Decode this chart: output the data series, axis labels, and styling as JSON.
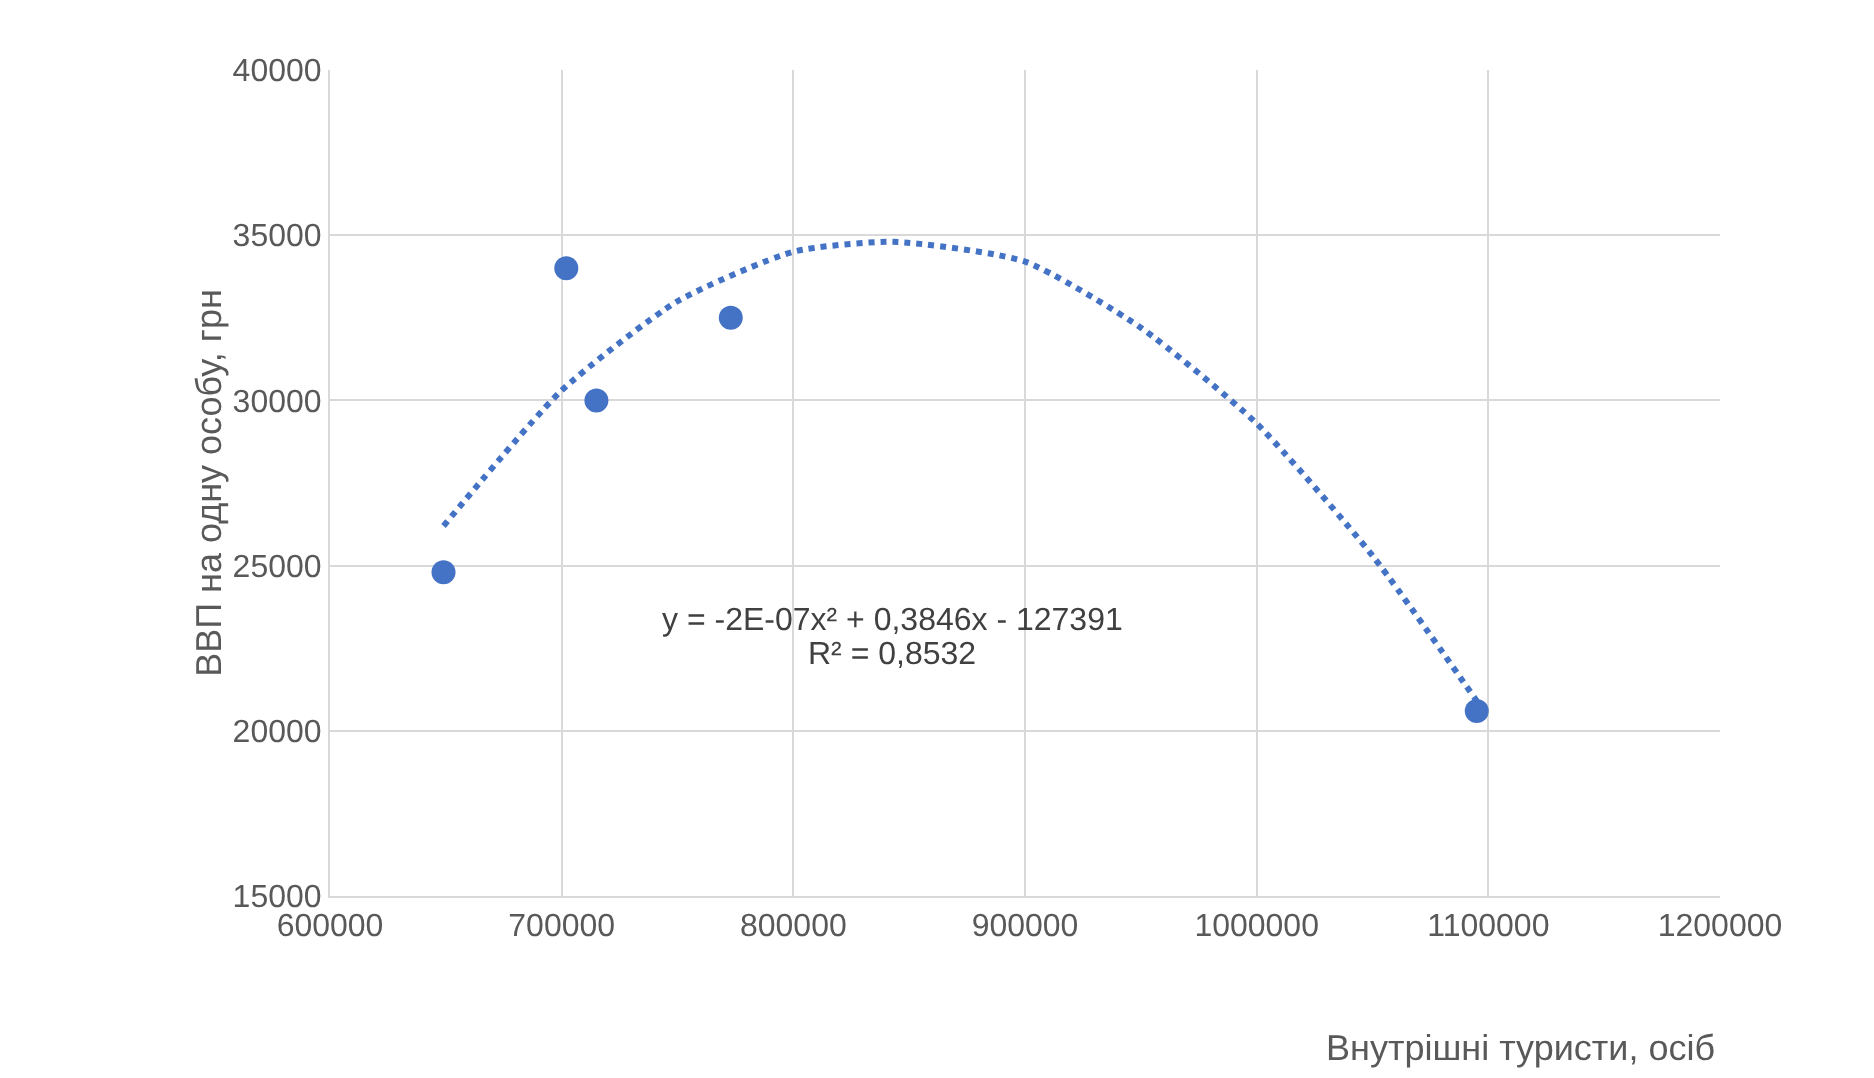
{
  "chart_data": {
    "type": "scatter",
    "xlabel": "Внутрішні туристи, осіб",
    "ylabel": "ВВП на одну особу, грн",
    "x": [
      649000,
      702000,
      715000,
      773000,
      1095000
    ],
    "series": [
      {
        "color": "#4472c4",
        "values": [
          24800,
          34000,
          30000,
          32500,
          20600
        ],
        "marker": "circle"
      },
      {
        "type": "line",
        "color": "#4472c4",
        "line_style": "dotted",
        "marker": "none",
        "x": [
          649000,
          700000,
          750000,
          800000,
          843000,
          900000,
          950000,
          1000000,
          1050000,
          1095000
        ],
        "values": [
          26200,
          30300,
          33000,
          34500,
          34800,
          34200,
          32200,
          29300,
          25300,
          20900
        ]
      }
    ],
    "xlim": [
      600000,
      1200000
    ],
    "xticks": [
      600000,
      700000,
      800000,
      900000,
      1000000,
      1100000,
      1200000
    ],
    "ylim": [
      15000,
      40000
    ],
    "yticks": [
      15000,
      20000,
      25000,
      30000,
      35000,
      40000
    ],
    "grid": true,
    "annotations": [
      "y = -2E-07x² + 0,3846x - 127391",
      "R² = 0,8532"
    ]
  }
}
